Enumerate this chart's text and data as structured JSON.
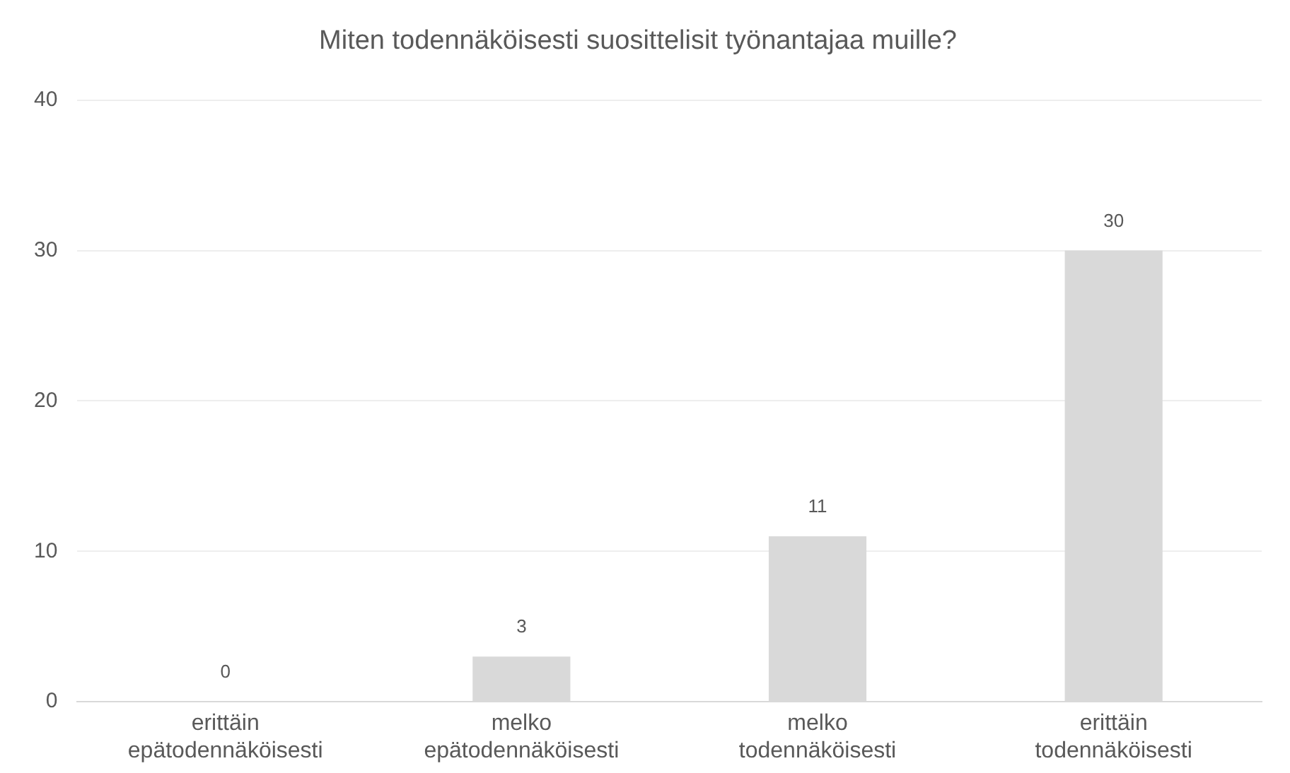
{
  "chart_data": {
    "type": "bar",
    "title": "Miten todennäköisesti suosittelisit työnantajaa muille?",
    "categories": [
      "erittäin epätodennäköisesti",
      "melko epätodennäköisesti",
      "melko todennäköisesti",
      "erittäin todennäköisesti"
    ],
    "values": [
      0,
      3,
      11,
      30
    ],
    "color": "#d9d9d9",
    "ylim": [
      0,
      40
    ],
    "yticks": [
      0,
      10,
      20,
      30,
      40
    ],
    "grid": "y",
    "data_labels": true,
    "legend": false
  }
}
